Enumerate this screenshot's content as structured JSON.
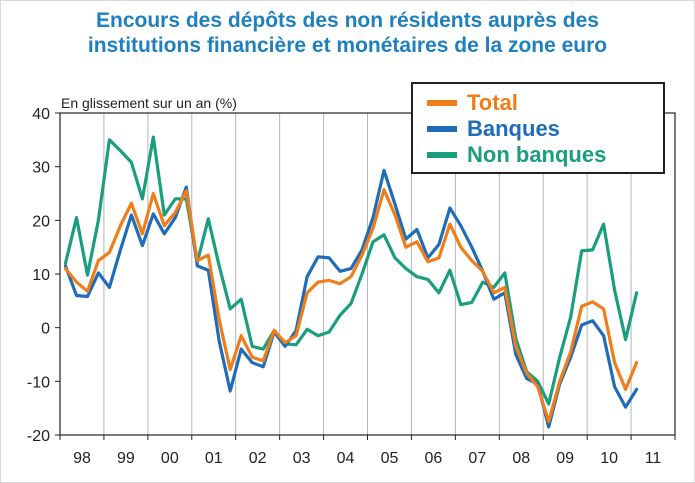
{
  "chart_data": {
    "type": "line",
    "title": [
      "Encours des dépôts des non résidents auprès des",
      "institutions financière et monétaires de la zone euro"
    ],
    "ylabel": "En glissement sur un an (%)",
    "xlabel": "",
    "ylim": [
      -20,
      40
    ],
    "yticks": [
      40,
      30,
      20,
      10,
      0,
      -10,
      -20
    ],
    "xlim": [
      1998,
      2012
    ],
    "x_tick_labels": [
      "98",
      "99",
      "00",
      "01",
      "02",
      "03",
      "04",
      "05",
      "06",
      "07",
      "08",
      "09",
      "10",
      "11"
    ],
    "grid": "vertical",
    "legend_position": "top-right",
    "series": [
      {
        "name": "Total",
        "color": "#f07d1a",
        "values": [
          11,
          8.5,
          6.8,
          12.5,
          14,
          19,
          23.2,
          17.5,
          25,
          19,
          21.5,
          25.5,
          12.5,
          13.5,
          1.5,
          -7.8,
          -1.5,
          -5.5,
          -6.2,
          -0.5,
          -2.8,
          -1.5,
          6.5,
          8.5,
          8.8,
          8.2,
          9.5,
          13.5,
          18.5,
          25.7,
          21,
          15,
          16,
          12.3,
          13,
          19.3,
          15,
          12.5,
          10.5,
          6.5,
          7.5,
          -3.5,
          -8.5,
          -11,
          -17.5,
          -10,
          -4.5,
          4,
          4.8,
          3.5,
          -6.5,
          -11.5,
          -6.5
        ]
      },
      {
        "name": "Banques",
        "color": "#1f6cb8",
        "values": [
          11.5,
          6,
          5.8,
          10.2,
          7.5,
          14.5,
          21,
          15.3,
          21.2,
          17.5,
          20.5,
          26.2,
          11.5,
          10.7,
          -2.5,
          -11.8,
          -4,
          -6.5,
          -7.3,
          -0.8,
          -3.5,
          -0.5,
          9.5,
          13.2,
          13,
          10.5,
          11,
          14.5,
          20.5,
          29.3,
          23,
          16.5,
          18.3,
          13,
          15.5,
          22.3,
          19,
          15,
          10.5,
          5.3,
          6.5,
          -5,
          -9.5,
          -10.5,
          -18.5,
          -10.5,
          -5.5,
          0.5,
          1.3,
          -1.5,
          -11,
          -14.8,
          -11.5
        ]
      },
      {
        "name": "Non banques",
        "color": "#1a9e7e",
        "values": [
          12,
          20.5,
          9.8,
          20,
          35,
          33,
          30.8,
          24,
          35.5,
          21,
          24,
          24,
          12.2,
          20.3,
          11.5,
          3.5,
          5.3,
          -3.5,
          -4,
          -0.5,
          -3,
          -3.2,
          -0.3,
          -1.5,
          -0.8,
          2.3,
          4.5,
          10,
          16,
          17.3,
          13,
          11,
          9.5,
          9,
          6.5,
          10.7,
          4.3,
          4.7,
          8.5,
          7.5,
          10.2,
          -2,
          -8.2,
          -10,
          -14.2,
          -5.5,
          2,
          14.3,
          14.5,
          19.3,
          7,
          -2.2,
          6.5
        ]
      }
    ]
  }
}
